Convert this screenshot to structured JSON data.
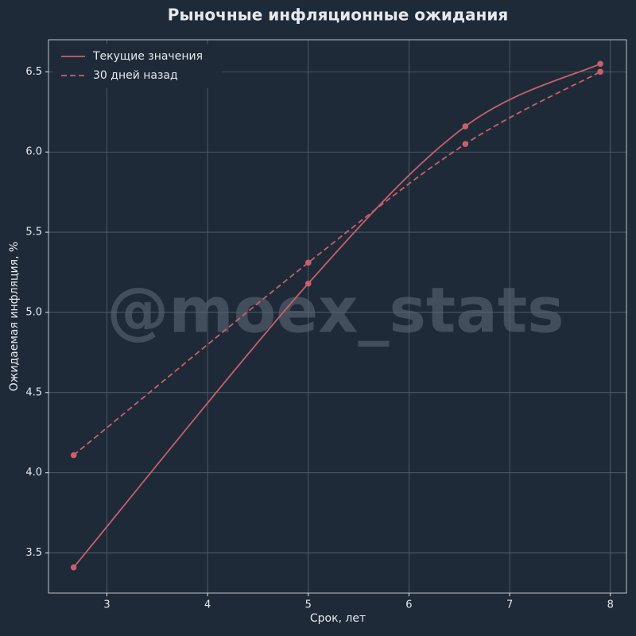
{
  "chart_data": {
    "type": "line",
    "title": "Рыночные инфляционные ожидания",
    "x_label": "Срок, лет",
    "y_label": "Ожидаемая инфляция, %",
    "watermark": "@moex_stats",
    "x": [
      2.67,
      5.0,
      6.56,
      7.9
    ],
    "series": [
      {
        "name": "Текущие значения",
        "color": "#c95f6b",
        "dash": "solid",
        "values": [
          3.41,
          5.18,
          6.16,
          6.55
        ]
      },
      {
        "name": "30 дней назад",
        "color": "#c95f6b",
        "dash": "dashed",
        "values": [
          4.11,
          5.31,
          6.05,
          6.5
        ]
      }
    ],
    "xlim": [
      2.42,
      8.16
    ],
    "ylim": [
      3.25,
      6.7
    ],
    "xticks": [
      3,
      4,
      5,
      6,
      7,
      8
    ],
    "yticks": [
      3.5,
      {
        "value": 4,
        "label": "4.0"
      },
      4.5,
      {
        "value": 5,
        "label": "5.0"
      },
      5.5,
      {
        "value": 6,
        "label": "6.0"
      },
      6.5
    ],
    "grid": true,
    "legend": "upper-left"
  }
}
